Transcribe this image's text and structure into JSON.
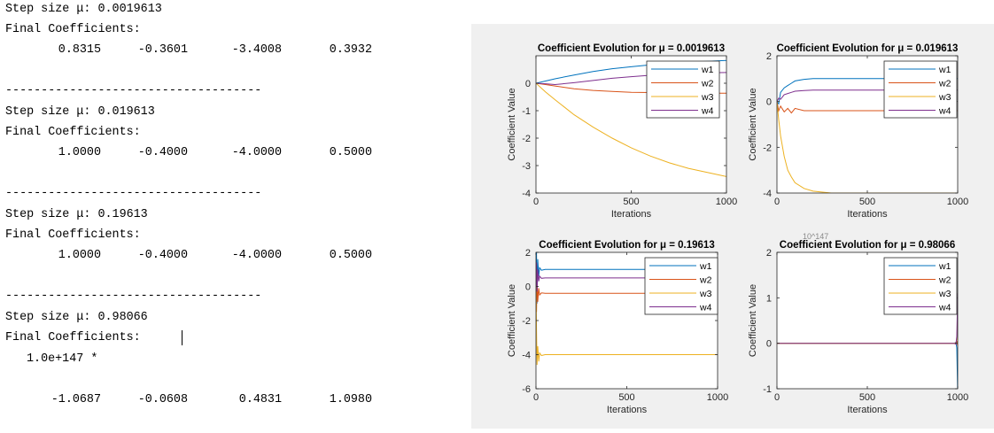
{
  "console": {
    "blocks": [
      {
        "step_label": "Step size μ: 0.0019613",
        "coef_label": "Final Coefficients:",
        "scale": "",
        "coefficients": [
          "0.8315",
          "-0.3601",
          "-3.4008",
          "0.3932"
        ],
        "separator": "------------------------------------"
      },
      {
        "step_label": "Step size μ: 0.019613",
        "coef_label": "Final Coefficients:",
        "scale": "",
        "coefficients": [
          "1.0000",
          "-0.4000",
          "-4.0000",
          "0.5000"
        ],
        "separator": "------------------------------------"
      },
      {
        "step_label": "Step size μ: 0.19613",
        "coef_label": "Final Coefficients:",
        "scale": "",
        "coefficients": [
          "1.0000",
          "-0.4000",
          "-4.0000",
          "0.5000"
        ],
        "separator": "------------------------------------"
      },
      {
        "step_label": "Step size μ: 0.98066",
        "coef_label": "Final Coefficients:",
        "scale": "1.0e+147 *",
        "coefficients": [
          "-1.0687",
          "-0.0608",
          "0.4831",
          "1.0980"
        ],
        "separator": ""
      }
    ]
  },
  "figure": {
    "colors": {
      "w1": "#0072BD",
      "w2": "#D95319",
      "w3": "#EDB120",
      "w4": "#7E2F8E"
    },
    "exponent_label": "10^147",
    "legend": [
      "w1",
      "w2",
      "w3",
      "w4"
    ]
  },
  "chart_data": [
    {
      "type": "line",
      "title": "Coefficient Evolution for μ = 0.0019613",
      "xlabel": "Iterations",
      "ylabel": "Coefficient Value",
      "xlim": [
        0,
        1000
      ],
      "ylim": [
        -4,
        1
      ],
      "xticks": [
        "0",
        "500",
        "1000"
      ],
      "yticks": [
        "-4",
        "-3",
        "-2",
        "-1",
        "0"
      ],
      "legend": "top-right",
      "series": [
        {
          "name": "w1",
          "x": [
            0,
            50,
            100,
            200,
            300,
            400,
            500,
            600,
            700,
            800,
            900,
            1000
          ],
          "values": [
            0,
            0.08,
            0.16,
            0.3,
            0.43,
            0.53,
            0.6,
            0.67,
            0.72,
            0.76,
            0.8,
            0.83
          ]
        },
        {
          "name": "w2",
          "x": [
            0,
            50,
            100,
            200,
            300,
            400,
            500,
            600,
            700,
            800,
            900,
            1000
          ],
          "values": [
            0,
            -0.05,
            -0.1,
            -0.2,
            -0.26,
            -0.3,
            -0.33,
            -0.34,
            -0.35,
            -0.35,
            -0.36,
            -0.36
          ]
        },
        {
          "name": "w3",
          "x": [
            0,
            50,
            100,
            200,
            300,
            400,
            500,
            600,
            700,
            800,
            900,
            1000
          ],
          "values": [
            0,
            -0.32,
            -0.6,
            -1.15,
            -1.6,
            -2.0,
            -2.35,
            -2.65,
            -2.9,
            -3.1,
            -3.25,
            -3.4
          ]
        },
        {
          "name": "w4",
          "x": [
            0,
            50,
            100,
            200,
            300,
            400,
            500,
            600,
            700,
            800,
            900,
            1000
          ],
          "values": [
            0,
            -0.02,
            -0.05,
            0.02,
            0.1,
            0.18,
            0.24,
            0.29,
            0.33,
            0.36,
            0.38,
            0.39
          ]
        }
      ]
    },
    {
      "type": "line",
      "title": "Coefficient Evolution for μ = 0.019613",
      "xlabel": "Iterations",
      "ylabel": "Coefficient Value",
      "xlim": [
        0,
        1000
      ],
      "ylim": [
        -4,
        2
      ],
      "xticks": [
        "0",
        "500",
        "1000"
      ],
      "yticks": [
        "-4",
        "-2",
        "0",
        "2"
      ],
      "legend": "top-right",
      "series": [
        {
          "name": "w1",
          "x": [
            0,
            10,
            20,
            40,
            60,
            80,
            100,
            150,
            200,
            300,
            500,
            1000
          ],
          "values": [
            0,
            -0.1,
            0.4,
            0.6,
            0.7,
            0.8,
            0.9,
            0.97,
            1.0,
            1.0,
            1.0,
            1.0
          ]
        },
        {
          "name": "w2",
          "x": [
            0,
            10,
            20,
            40,
            60,
            80,
            100,
            150,
            200,
            300,
            500,
            1000
          ],
          "values": [
            0,
            -0.4,
            -0.2,
            -0.45,
            -0.3,
            -0.5,
            -0.3,
            -0.4,
            -0.4,
            -0.4,
            -0.4,
            -0.4
          ]
        },
        {
          "name": "w3",
          "x": [
            0,
            10,
            20,
            40,
            60,
            80,
            100,
            150,
            200,
            300,
            500,
            1000
          ],
          "values": [
            0,
            -0.8,
            -1.5,
            -2.4,
            -3.0,
            -3.3,
            -3.55,
            -3.8,
            -3.92,
            -4.0,
            -4.0,
            -4.0
          ]
        },
        {
          "name": "w4",
          "x": [
            0,
            10,
            20,
            40,
            60,
            80,
            100,
            150,
            200,
            300,
            500,
            1000
          ],
          "values": [
            0,
            0.15,
            0.1,
            0.3,
            0.35,
            0.4,
            0.45,
            0.48,
            0.5,
            0.5,
            0.5,
            0.5
          ]
        }
      ]
    },
    {
      "type": "line",
      "title": "Coefficient Evolution for μ = 0.19613",
      "xlabel": "Iterations",
      "ylabel": "Coefficient Value",
      "xlim": [
        0,
        1000
      ],
      "ylim": [
        -6,
        2
      ],
      "xticks": [
        "0",
        "500",
        "1000"
      ],
      "yticks": [
        "-6",
        "-4",
        "-2",
        "0",
        "2"
      ],
      "legend": "top-right",
      "series": [
        {
          "name": "w1",
          "x": [
            0,
            3,
            6,
            10,
            15,
            20,
            30,
            50,
            1000
          ],
          "values": [
            0,
            2,
            -1,
            1.6,
            0.6,
            1.1,
            0.95,
            1.0,
            1.0
          ]
        },
        {
          "name": "w2",
          "x": [
            0,
            3,
            6,
            10,
            15,
            20,
            30,
            50,
            1000
          ],
          "values": [
            0,
            -1.5,
            0.5,
            -0.9,
            -0.1,
            -0.5,
            -0.38,
            -0.4,
            -0.4
          ]
        },
        {
          "name": "w3",
          "x": [
            0,
            3,
            6,
            10,
            15,
            20,
            30,
            50,
            1000
          ],
          "values": [
            0,
            -2.5,
            -4.6,
            -3.5,
            -4.4,
            -3.9,
            -4.05,
            -4.0,
            -4.0
          ]
        },
        {
          "name": "w4",
          "x": [
            0,
            3,
            6,
            10,
            15,
            20,
            30,
            50,
            1000
          ],
          "values": [
            0,
            1.4,
            -0.3,
            1.0,
            0.3,
            0.6,
            0.48,
            0.5,
            0.5
          ]
        }
      ]
    },
    {
      "type": "line",
      "title": "Coefficient Evolution for μ = 0.98066",
      "xlabel": "Iterations",
      "ylabel": "Coefficient Value",
      "xlim": [
        0,
        1000
      ],
      "ylim": [
        -1,
        2
      ],
      "xticks": [
        "0",
        "500",
        "1000"
      ],
      "yticks": [
        "-1",
        "0",
        "1",
        "2"
      ],
      "legend": "top-right",
      "series": [
        {
          "name": "w1",
          "x": [
            0,
            980,
            990,
            995,
            1000
          ],
          "values": [
            0,
            0,
            0.02,
            -0.1,
            -1.07
          ]
        },
        {
          "name": "w2",
          "x": [
            0,
            980,
            990,
            995,
            1000
          ],
          "values": [
            0,
            0,
            -0.01,
            0.05,
            -0.06
          ]
        },
        {
          "name": "w3",
          "x": [
            0,
            980,
            990,
            995,
            1000
          ],
          "values": [
            0,
            0,
            0.01,
            0.08,
            0.48
          ]
        },
        {
          "name": "w4",
          "x": [
            0,
            980,
            990,
            995,
            1000
          ],
          "values": [
            0,
            0,
            -0.02,
            0.15,
            1.1
          ]
        }
      ]
    }
  ]
}
